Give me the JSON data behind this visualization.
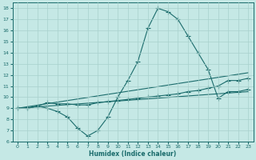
{
  "xlabel": "Humidex (Indice chaleur)",
  "xlim": [
    -0.5,
    23.5
  ],
  "ylim": [
    6,
    18.5
  ],
  "xticks": [
    0,
    1,
    2,
    3,
    4,
    5,
    6,
    7,
    8,
    9,
    10,
    11,
    12,
    13,
    14,
    15,
    16,
    17,
    18,
    19,
    20,
    21,
    22,
    23
  ],
  "yticks": [
    6,
    7,
    8,
    9,
    10,
    11,
    12,
    13,
    14,
    15,
    16,
    17,
    18
  ],
  "bg_color": "#c5e8e5",
  "grid_color": "#a8d0cc",
  "line_color": "#1a6b6b",
  "curve1_x": [
    0,
    1,
    2,
    3,
    4,
    5,
    6,
    7,
    8,
    9,
    10,
    11,
    12,
    13,
    14,
    15,
    16,
    17,
    18,
    19,
    20,
    21,
    22,
    23
  ],
  "curve1_y": [
    9.0,
    9.0,
    9.2,
    9.0,
    8.7,
    8.2,
    7.2,
    6.5,
    7.0,
    8.2,
    10.0,
    11.5,
    13.2,
    16.2,
    18.0,
    17.7,
    17.0,
    15.5,
    14.0,
    12.5,
    9.9,
    10.5,
    10.5,
    10.7
  ],
  "curve2_x": [
    0,
    1,
    2,
    3,
    4,
    5,
    6,
    7,
    8,
    9,
    10,
    11,
    12,
    13,
    14,
    15,
    16,
    17,
    18,
    19,
    20,
    21,
    22,
    23
  ],
  "curve2_y": [
    9.0,
    9.0,
    9.2,
    9.5,
    9.4,
    9.4,
    9.3,
    9.3,
    9.5,
    9.6,
    9.7,
    9.8,
    9.9,
    10.0,
    10.1,
    10.2,
    10.3,
    10.5,
    10.6,
    10.8,
    11.0,
    11.5,
    11.5,
    11.7
  ],
  "line3": {
    "x": [
      0,
      23
    ],
    "y": [
      9.0,
      10.5
    ]
  },
  "line4": {
    "x": [
      0,
      23
    ],
    "y": [
      9.0,
      12.2
    ]
  }
}
